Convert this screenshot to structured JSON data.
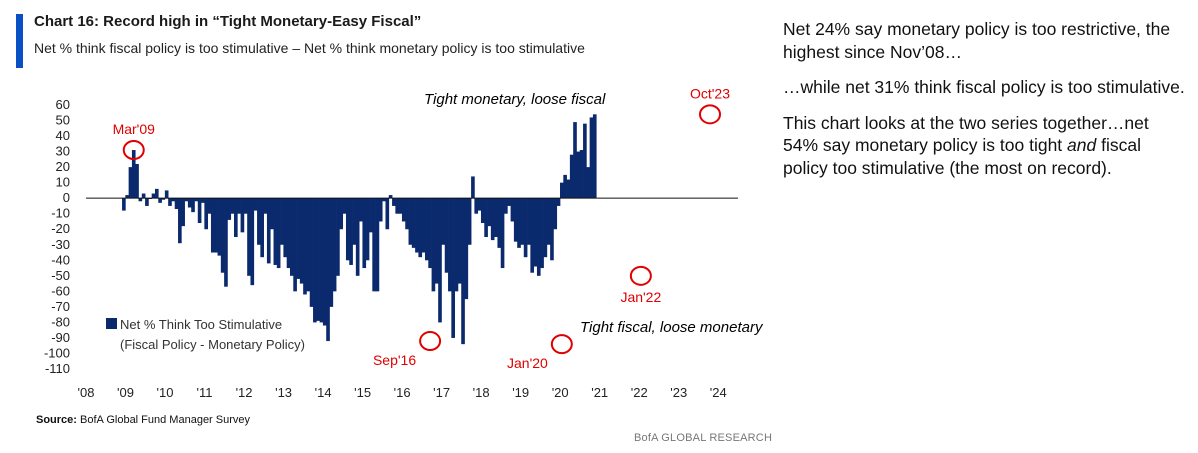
{
  "header": {
    "title": "Chart 16: Record high in “Tight Monetary-Easy Fiscal”",
    "subtitle": "Net % think fiscal policy is too stimulative – Net % think monetary policy is too stimulative"
  },
  "footer": {
    "source_label": "Source:",
    "source_text": "BofA Global Fund Manager Survey",
    "brand": "BofA GLOBAL RESEARCH"
  },
  "commentary": {
    "p1": "Net 24% say monetary policy is too restrictive, the highest since Nov’08…",
    "p2": "…while net 31% think fiscal policy is too stimulative.",
    "p3_a": "This chart looks at the two series together…net 54% say monetary policy is too tight ",
    "p3_em": "and",
    "p3_b": " fiscal policy too stimulative (the most on record)."
  },
  "colors": {
    "bar": "#0b2a6e",
    "accent": "#0a4fc4",
    "annotation": "#e00000"
  },
  "chart_data": {
    "type": "bar",
    "title": "Chart 16: Record high in “Tight Monetary-Easy Fiscal”",
    "ylabel": "",
    "xlabel": "",
    "ylim": [
      -110,
      60
    ],
    "yticks": [
      60,
      50,
      40,
      30,
      20,
      10,
      0,
      -10,
      -20,
      -30,
      -40,
      -50,
      -60,
      -70,
      -80,
      -90,
      -100,
      -110
    ],
    "xlim": [
      2008,
      2024.5
    ],
    "xticks": [
      "'08",
      "'09",
      "'10",
      "'11",
      "'12",
      "'13",
      "'14",
      "'15",
      "'16",
      "'17",
      "'18",
      "'19",
      "'20",
      "'21",
      "'22",
      "'23",
      "'24"
    ],
    "legend": {
      "label_1": "Net % Think Too Stimulative",
      "label_2": "(Fiscal Policy - Monetary Policy)",
      "position": "lower-left"
    },
    "series": [
      {
        "name": "Net % Think Too Stimulative (Fiscal Policy - Monetary Policy)",
        "start": "2008-12",
        "frequency": "monthly",
        "values": [
          -8,
          2,
          20,
          31,
          22,
          -2,
          3,
          -5,
          0,
          3,
          6,
          -3,
          -1,
          5,
          -5,
          -2,
          -7,
          -29,
          -18,
          -2,
          -6,
          -9,
          -2,
          -16,
          -3,
          -20,
          -10,
          -35,
          -35,
          -37,
          -48,
          -57,
          -14,
          -10,
          -25,
          -10,
          -22,
          -10,
          -50,
          -56,
          -8,
          -30,
          -38,
          -10,
          -42,
          -20,
          -43,
          -45,
          -30,
          -38,
          -45,
          -50,
          -60,
          -52,
          -55,
          -62,
          -60,
          -70,
          -80,
          -79,
          -80,
          -82,
          -92,
          -70,
          -60,
          -50,
          -20,
          -10,
          -40,
          -43,
          -30,
          -50,
          -15,
          -45,
          -40,
          -22,
          -60,
          -60,
          -15,
          -2,
          -20,
          2,
          -5,
          -10,
          -10,
          -15,
          -20,
          -30,
          -32,
          -35,
          -38,
          -35,
          -40,
          -45,
          -60,
          -55,
          -80,
          -30,
          -48,
          -60,
          -90,
          -60,
          -55,
          -94,
          -65,
          -30,
          14,
          -10,
          -8,
          -16,
          -25,
          -18,
          -27,
          -25,
          -32,
          -45,
          -10,
          -5,
          -15,
          -28,
          -32,
          -30,
          -38,
          -30,
          -48,
          -44,
          -50,
          -45,
          -38,
          -30,
          -40,
          -20,
          -5,
          10,
          15,
          12,
          28,
          49,
          30,
          31,
          48,
          20,
          52,
          54
        ]
      }
    ],
    "annotations": [
      {
        "text": "Mar'09",
        "date": "2009-03",
        "value": 31
      },
      {
        "text": "Sep'16",
        "date": "2016-09",
        "value": -92
      },
      {
        "text": "Jan'20",
        "date": "2020-01",
        "value": -94
      },
      {
        "text": "Jan'22",
        "date": "2022-01",
        "value": -50
      },
      {
        "text": "Oct'23",
        "date": "2023-10",
        "value": 54
      }
    ],
    "region_labels": {
      "top": "Tight monetary, loose fiscal",
      "bottom": "Tight fiscal, loose monetary"
    }
  }
}
